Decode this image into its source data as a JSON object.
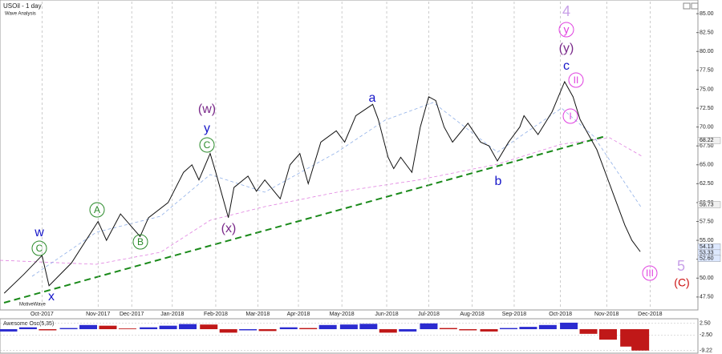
{
  "chart_data": [
    {
      "type": "line",
      "title": "USOil - 1 day",
      "subtitle": "Wave Analysis",
      "watermark": "MotiveWave",
      "color": "#111111",
      "x": [
        3,
        17,
        30,
        35,
        51,
        70,
        76,
        86,
        100,
        106,
        120,
        131,
        137,
        142,
        150,
        154,
        163,
        167,
        177,
        183,
        189,
        200,
        207,
        214,
        220,
        229,
        240,
        246,
        254,
        266,
        270,
        277,
        281,
        286,
        294,
        300,
        306,
        311,
        317,
        323,
        334,
        343,
        349,
        355,
        363,
        371,
        374,
        384,
        394,
        403,
        409,
        414,
        420,
        426,
        434,
        440,
        446,
        451,
        457
      ],
      "values": [
        48,
        50.5,
        53,
        49,
        52,
        57.5,
        55,
        58.5,
        55.5,
        58,
        60,
        64,
        65,
        63,
        66.5,
        64,
        58,
        62,
        63.5,
        61.5,
        63,
        60.5,
        65,
        66.5,
        62.5,
        68,
        69.5,
        68,
        71.5,
        73,
        71,
        66,
        64.5,
        66,
        64,
        70,
        74,
        73.5,
        70,
        68,
        70.5,
        68,
        67.5,
        65.5,
        68,
        70,
        71.5,
        69,
        72,
        76,
        74,
        71,
        69,
        67,
        63,
        60,
        57,
        55,
        53.5
      ],
      "xlim": [
        0,
        497
      ],
      "xticks": [
        {
          "value": 30,
          "label": "Oct-2017"
        },
        {
          "value": 70,
          "label": "Nov-2017"
        },
        {
          "value": 94,
          "label": "Dec-2017"
        },
        {
          "value": 123,
          "label": "Jan-2018"
        },
        {
          "value": 154,
          "label": "Feb-2018"
        },
        {
          "value": 184,
          "label": "Mar-2018"
        },
        {
          "value": 213,
          "label": "Apr-2018"
        },
        {
          "value": 244,
          "label": "May-2018"
        },
        {
          "value": 276,
          "label": "Jun-2018"
        },
        {
          "value": 306,
          "label": "Jul-2018"
        },
        {
          "value": 337,
          "label": "Aug-2018"
        },
        {
          "value": 367,
          "label": "Sep-2018"
        },
        {
          "value": 400,
          "label": "Oct-2018"
        },
        {
          "value": 433,
          "label": "Nov-2018"
        },
        {
          "value": 464,
          "label": "Dec-2018"
        }
      ],
      "ylim": [
        46,
        86.6
      ],
      "yticks": [
        {
          "value": 47.5,
          "label": "47.50"
        },
        {
          "value": 50,
          "label": "50.00"
        },
        {
          "value": 52.5,
          "label": "52.50"
        },
        {
          "value": 55,
          "label": "55.00"
        },
        {
          "value": 57.5,
          "label": "57.50"
        },
        {
          "value": 60,
          "label": "60.00"
        },
        {
          "value": 62.5,
          "label": "62.50"
        },
        {
          "value": 65,
          "label": "65.00"
        },
        {
          "value": 67.5,
          "label": "67.50"
        },
        {
          "value": 70,
          "label": "70.00"
        },
        {
          "value": 72.5,
          "label": "72.50"
        },
        {
          "value": 75,
          "label": "75.00"
        },
        {
          "value": 77.5,
          "label": "77.50"
        },
        {
          "value": 80,
          "label": "80.00"
        },
        {
          "value": 82.5,
          "label": "82.50"
        },
        {
          "value": 85,
          "label": "85.00"
        }
      ],
      "price_tags": [
        68.22,
        59.73,
        54.13,
        53.33,
        {
          "value": 52.6,
          "label": "52.60"
        }
      ],
      "annotations": [
        {
          "text": "4",
          "color": "#c8a0e8",
          "circled": false
        },
        {
          "text": "y",
          "color": "#e040e0",
          "circled": true
        },
        {
          "text": "(y)",
          "color": "#7a2a8a",
          "circled": false
        },
        {
          "text": "c",
          "color": "#1515c8",
          "circled": false
        },
        {
          "text": "II",
          "color": "#e040e0",
          "circled": true
        },
        {
          "text": "I",
          "color": "#e040e0",
          "circled": true
        },
        {
          "text": "a",
          "color": "#1515c8",
          "circled": false
        },
        {
          "text": "(w)",
          "color": "#7a2a8a",
          "circled": false
        },
        {
          "text": "y",
          "color": "#1515c8",
          "circled": false
        },
        {
          "text": "C",
          "color": "#2a8a2a",
          "circled": true
        },
        {
          "text": "A",
          "color": "#2a8a2a",
          "circled": true
        },
        {
          "text": "B",
          "color": "#2a8a2a",
          "circled": true
        },
        {
          "text": "(x)",
          "color": "#7a2a8a",
          "circled": false
        },
        {
          "text": "w",
          "color": "#1515c8",
          "circled": false
        },
        {
          "text": "C",
          "color": "#2a8a2a",
          "circled": true
        },
        {
          "text": "x",
          "color": "#1515c8",
          "circled": false
        },
        {
          "text": "b",
          "color": "#1515c8",
          "circled": false
        },
        {
          "text": "5",
          "color": "#c8a0e8",
          "circled": false
        },
        {
          "text": "III",
          "color": "#e040e0",
          "circled": true
        },
        {
          "text": "(C)",
          "color": "#cc1010",
          "circled": false
        }
      ]
    },
    {
      "type": "bar",
      "title": "Awesome Osc(5,35)",
      "up_color": "#2b2bd0",
      "down_color": "#c01818",
      "x": [
        6,
        20,
        34,
        49,
        63,
        77,
        91,
        106,
        120,
        134,
        149,
        163,
        177,
        191,
        206,
        220,
        234,
        249,
        263,
        277,
        291,
        306,
        320,
        334,
        349,
        363,
        377,
        391,
        406,
        420,
        434,
        449,
        457
      ],
      "values": [
        -1,
        0.8,
        -0.5,
        0.5,
        1.8,
        1.5,
        0.3,
        0.8,
        1.5,
        2.2,
        2.0,
        -1.5,
        -0.5,
        -0.8,
        0.8,
        0.5,
        1.8,
        2.0,
        2.3,
        -1.5,
        -1.0,
        2.5,
        0.5,
        -0.5,
        -1.0,
        0.5,
        1.0,
        1.8,
        2.8,
        -2.0,
        -4.5,
        -7.5,
        -9.2
      ],
      "xlim": [
        0,
        497
      ],
      "ylim": [
        -10,
        3.8
      ],
      "yticks": [
        {
          "value": 2.5,
          "label": "2.50"
        },
        {
          "value": -2.5,
          "label": "-2.50"
        },
        -9.22
      ]
    }
  ]
}
